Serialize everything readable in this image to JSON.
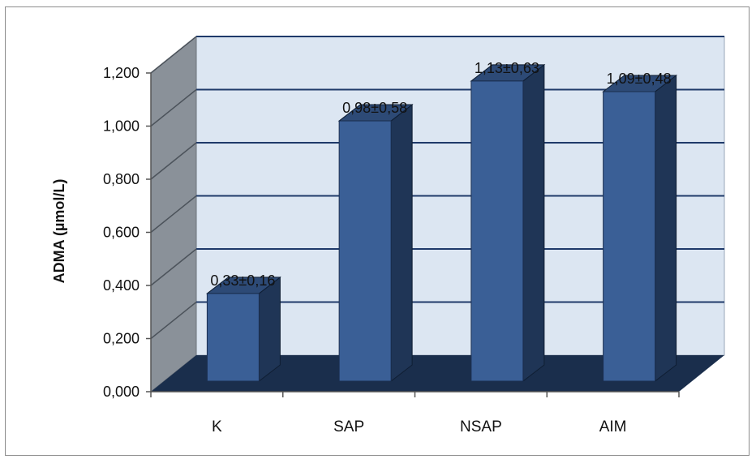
{
  "chart_data": {
    "type": "bar",
    "style": "3d-column",
    "title": "",
    "xlabel": "",
    "ylabel": "ADMA (µmol/L)",
    "categories": [
      "K",
      "SAP",
      "NSAP",
      "AIM"
    ],
    "series": [
      {
        "values": [
          0.33,
          0.98,
          1.13,
          1.09
        ],
        "data_labels": [
          "0,33±0,16",
          "0,98±0,58",
          "1,13±0,63",
          "1,09±0,48"
        ]
      }
    ],
    "ylim": [
      0,
      1.2
    ],
    "yticks": [
      0,
      0.2,
      0.4,
      0.6,
      0.8,
      1.0,
      1.2
    ],
    "ytick_labels": [
      "0,000",
      "0,200",
      "0,400",
      "0,600",
      "0,800",
      "1,000",
      "1,200"
    ],
    "grid": true,
    "legend": "none",
    "colors": {
      "bar_front": "#3a5f96",
      "bar_side": "#1f3556",
      "bar_top": "#2d4a76",
      "back_wall": "#dce6f2",
      "side_wall": "#8a9199",
      "floor": "#1a2e4c",
      "gridline": "#1f3a6a"
    }
  }
}
